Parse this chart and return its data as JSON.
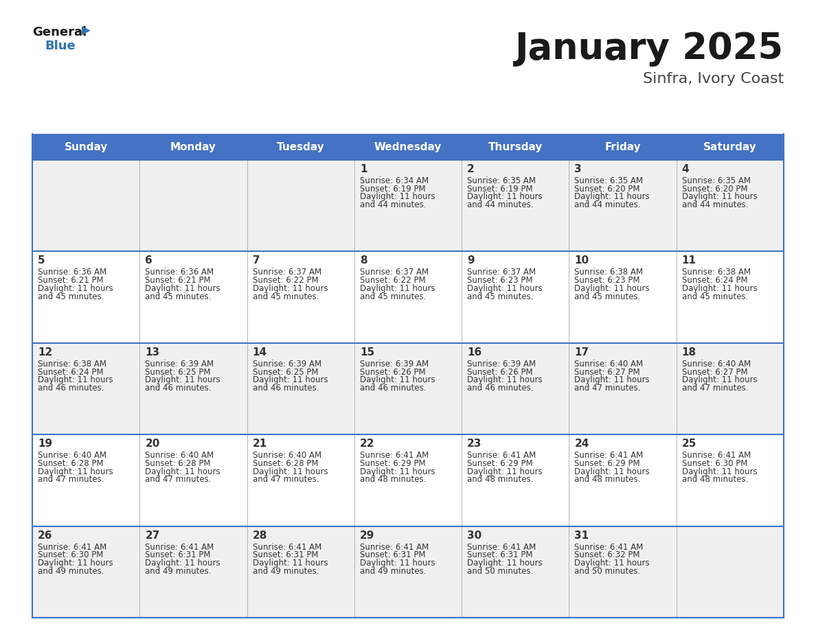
{
  "title": "January 2025",
  "subtitle": "Sinfra, Ivory Coast",
  "header_color": "#4472C4",
  "header_text_color": "#FFFFFF",
  "bg_color": "#FFFFFF",
  "alt_row_color": "#F0F0F0",
  "border_color": "#4472C4",
  "cell_border_color": "#AAAAAA",
  "text_color": "#333333",
  "days_of_week": [
    "Sunday",
    "Monday",
    "Tuesday",
    "Wednesday",
    "Thursday",
    "Friday",
    "Saturday"
  ],
  "weeks": [
    [
      {
        "day": "",
        "sunrise": "",
        "sunset": "",
        "daylight": ""
      },
      {
        "day": "",
        "sunrise": "",
        "sunset": "",
        "daylight": ""
      },
      {
        "day": "",
        "sunrise": "",
        "sunset": "",
        "daylight": ""
      },
      {
        "day": "1",
        "sunrise": "Sunrise: 6:34 AM",
        "sunset": "Sunset: 6:19 PM",
        "daylight": "Daylight: 11 hours\nand 44 minutes."
      },
      {
        "day": "2",
        "sunrise": "Sunrise: 6:35 AM",
        "sunset": "Sunset: 6:19 PM",
        "daylight": "Daylight: 11 hours\nand 44 minutes."
      },
      {
        "day": "3",
        "sunrise": "Sunrise: 6:35 AM",
        "sunset": "Sunset: 6:20 PM",
        "daylight": "Daylight: 11 hours\nand 44 minutes."
      },
      {
        "day": "4",
        "sunrise": "Sunrise: 6:35 AM",
        "sunset": "Sunset: 6:20 PM",
        "daylight": "Daylight: 11 hours\nand 44 minutes."
      }
    ],
    [
      {
        "day": "5",
        "sunrise": "Sunrise: 6:36 AM",
        "sunset": "Sunset: 6:21 PM",
        "daylight": "Daylight: 11 hours\nand 45 minutes."
      },
      {
        "day": "6",
        "sunrise": "Sunrise: 6:36 AM",
        "sunset": "Sunset: 6:21 PM",
        "daylight": "Daylight: 11 hours\nand 45 minutes."
      },
      {
        "day": "7",
        "sunrise": "Sunrise: 6:37 AM",
        "sunset": "Sunset: 6:22 PM",
        "daylight": "Daylight: 11 hours\nand 45 minutes."
      },
      {
        "day": "8",
        "sunrise": "Sunrise: 6:37 AM",
        "sunset": "Sunset: 6:22 PM",
        "daylight": "Daylight: 11 hours\nand 45 minutes."
      },
      {
        "day": "9",
        "sunrise": "Sunrise: 6:37 AM",
        "sunset": "Sunset: 6:23 PM",
        "daylight": "Daylight: 11 hours\nand 45 minutes."
      },
      {
        "day": "10",
        "sunrise": "Sunrise: 6:38 AM",
        "sunset": "Sunset: 6:23 PM",
        "daylight": "Daylight: 11 hours\nand 45 minutes."
      },
      {
        "day": "11",
        "sunrise": "Sunrise: 6:38 AM",
        "sunset": "Sunset: 6:24 PM",
        "daylight": "Daylight: 11 hours\nand 45 minutes."
      }
    ],
    [
      {
        "day": "12",
        "sunrise": "Sunrise: 6:38 AM",
        "sunset": "Sunset: 6:24 PM",
        "daylight": "Daylight: 11 hours\nand 46 minutes."
      },
      {
        "day": "13",
        "sunrise": "Sunrise: 6:39 AM",
        "sunset": "Sunset: 6:25 PM",
        "daylight": "Daylight: 11 hours\nand 46 minutes."
      },
      {
        "day": "14",
        "sunrise": "Sunrise: 6:39 AM",
        "sunset": "Sunset: 6:25 PM",
        "daylight": "Daylight: 11 hours\nand 46 minutes."
      },
      {
        "day": "15",
        "sunrise": "Sunrise: 6:39 AM",
        "sunset": "Sunset: 6:26 PM",
        "daylight": "Daylight: 11 hours\nand 46 minutes."
      },
      {
        "day": "16",
        "sunrise": "Sunrise: 6:39 AM",
        "sunset": "Sunset: 6:26 PM",
        "daylight": "Daylight: 11 hours\nand 46 minutes."
      },
      {
        "day": "17",
        "sunrise": "Sunrise: 6:40 AM",
        "sunset": "Sunset: 6:27 PM",
        "daylight": "Daylight: 11 hours\nand 47 minutes."
      },
      {
        "day": "18",
        "sunrise": "Sunrise: 6:40 AM",
        "sunset": "Sunset: 6:27 PM",
        "daylight": "Daylight: 11 hours\nand 47 minutes."
      }
    ],
    [
      {
        "day": "19",
        "sunrise": "Sunrise: 6:40 AM",
        "sunset": "Sunset: 6:28 PM",
        "daylight": "Daylight: 11 hours\nand 47 minutes."
      },
      {
        "day": "20",
        "sunrise": "Sunrise: 6:40 AM",
        "sunset": "Sunset: 6:28 PM",
        "daylight": "Daylight: 11 hours\nand 47 minutes."
      },
      {
        "day": "21",
        "sunrise": "Sunrise: 6:40 AM",
        "sunset": "Sunset: 6:28 PM",
        "daylight": "Daylight: 11 hours\nand 47 minutes."
      },
      {
        "day": "22",
        "sunrise": "Sunrise: 6:41 AM",
        "sunset": "Sunset: 6:29 PM",
        "daylight": "Daylight: 11 hours\nand 48 minutes."
      },
      {
        "day": "23",
        "sunrise": "Sunrise: 6:41 AM",
        "sunset": "Sunset: 6:29 PM",
        "daylight": "Daylight: 11 hours\nand 48 minutes."
      },
      {
        "day": "24",
        "sunrise": "Sunrise: 6:41 AM",
        "sunset": "Sunset: 6:29 PM",
        "daylight": "Daylight: 11 hours\nand 48 minutes."
      },
      {
        "day": "25",
        "sunrise": "Sunrise: 6:41 AM",
        "sunset": "Sunset: 6:30 PM",
        "daylight": "Daylight: 11 hours\nand 48 minutes."
      }
    ],
    [
      {
        "day": "26",
        "sunrise": "Sunrise: 6:41 AM",
        "sunset": "Sunset: 6:30 PM",
        "daylight": "Daylight: 11 hours\nand 49 minutes."
      },
      {
        "day": "27",
        "sunrise": "Sunrise: 6:41 AM",
        "sunset": "Sunset: 6:31 PM",
        "daylight": "Daylight: 11 hours\nand 49 minutes."
      },
      {
        "day": "28",
        "sunrise": "Sunrise: 6:41 AM",
        "sunset": "Sunset: 6:31 PM",
        "daylight": "Daylight: 11 hours\nand 49 minutes."
      },
      {
        "day": "29",
        "sunrise": "Sunrise: 6:41 AM",
        "sunset": "Sunset: 6:31 PM",
        "daylight": "Daylight: 11 hours\nand 49 minutes."
      },
      {
        "day": "30",
        "sunrise": "Sunrise: 6:41 AM",
        "sunset": "Sunset: 6:31 PM",
        "daylight": "Daylight: 11 hours\nand 50 minutes."
      },
      {
        "day": "31",
        "sunrise": "Sunrise: 6:41 AM",
        "sunset": "Sunset: 6:32 PM",
        "daylight": "Daylight: 11 hours\nand 50 minutes."
      },
      {
        "day": "",
        "sunrise": "",
        "sunset": "",
        "daylight": ""
      }
    ]
  ],
  "logo_general_color": "#1a1a1a",
  "logo_blue_color": "#2E75B6",
  "logo_triangle_color": "#2E75B6",
  "title_fontsize": 38,
  "subtitle_fontsize": 16,
  "header_fontsize": 11,
  "day_num_fontsize": 11,
  "cell_text_fontsize": 8.5
}
